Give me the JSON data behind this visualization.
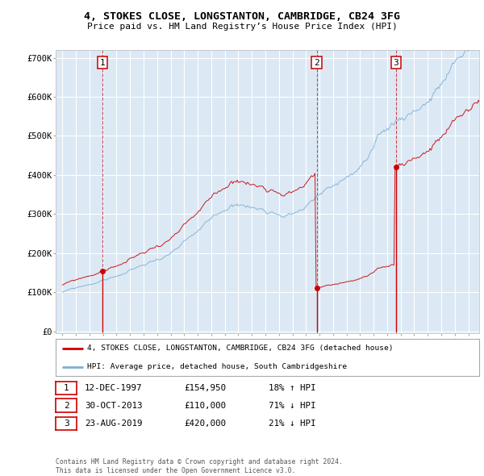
{
  "title": "4, STOKES CLOSE, LONGSTANTON, CAMBRIDGE, CB24 3FG",
  "subtitle": "Price paid vs. HM Land Registry’s House Price Index (HPI)",
  "legend_line1": "4, STOKES CLOSE, LONGSTANTON, CAMBRIDGE, CB24 3FG (detached house)",
  "legend_line2": "HPI: Average price, detached house, South Cambridgeshire",
  "transactions": [
    {
      "num": "1",
      "date": "12-DEC-1997",
      "price": "£154,950",
      "pct": "18% ↑ HPI",
      "x_year": 1997.96,
      "y_val": 154950
    },
    {
      "num": "2",
      "date": "30-OCT-2013",
      "price": "£110,000",
      "pct": "71% ↓ HPI",
      "x_year": 2013.79,
      "y_val": 110000
    },
    {
      "num": "3",
      "date": "23-AUG-2019",
      "price": "£420,000",
      "pct": "21% ↓ HPI",
      "x_year": 2019.65,
      "y_val": 420000
    }
  ],
  "footnote1": "Contains HM Land Registry data © Crown copyright and database right 2024.",
  "footnote2": "This data is licensed under the Open Government Licence v3.0.",
  "fig_bg": "#ffffff",
  "plot_bg": "#dce9f5",
  "red_color": "#cc0000",
  "blue_color": "#7fafd4",
  "grid_color": "#ffffff",
  "yticks": [
    0,
    100000,
    200000,
    300000,
    400000,
    500000,
    600000,
    700000
  ],
  "ylabels": [
    "£0",
    "£100K",
    "£200K",
    "£300K",
    "£400K",
    "£500K",
    "£600K",
    "£700K"
  ],
  "year_start": 1995,
  "year_end": 2025,
  "xlim_min": 1994.5,
  "xlim_max": 2025.8
}
